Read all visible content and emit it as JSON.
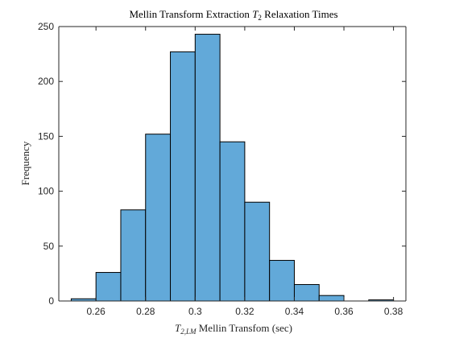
{
  "chart_data": {
    "type": "bar",
    "title_main": "Mellin Transform Extraction ",
    "title_var": "T",
    "title_sub": "2",
    "title_rest": " Relaxation Times",
    "xlabel_var": "T",
    "xlabel_sub": "2,LM",
    "xlabel_rest": " Mellin Transfom (sec)",
    "ylabel": "Frequency",
    "xlim": [
      0.245,
      0.385
    ],
    "ylim": [
      0,
      250
    ],
    "xticks": [
      0.26,
      0.28,
      0.3,
      0.32,
      0.34,
      0.36,
      0.38
    ],
    "xtick_labels": [
      "0.26",
      "0.28",
      "0.3",
      "0.32",
      "0.34",
      "0.36",
      "0.38"
    ],
    "yticks": [
      0,
      50,
      100,
      150,
      200,
      250
    ],
    "ytick_labels": [
      "0",
      "50",
      "100",
      "150",
      "200",
      "250"
    ],
    "bin_edges": [
      0.25,
      0.26,
      0.27,
      0.28,
      0.29,
      0.3,
      0.31,
      0.32,
      0.33,
      0.34,
      0.35,
      0.36,
      0.37,
      0.38
    ],
    "values": [
      2,
      26,
      83,
      152,
      227,
      243,
      145,
      90,
      37,
      15,
      5,
      0,
      1
    ],
    "bar_color": "#62a9d9",
    "edge_color": "#000000",
    "grid": false
  }
}
